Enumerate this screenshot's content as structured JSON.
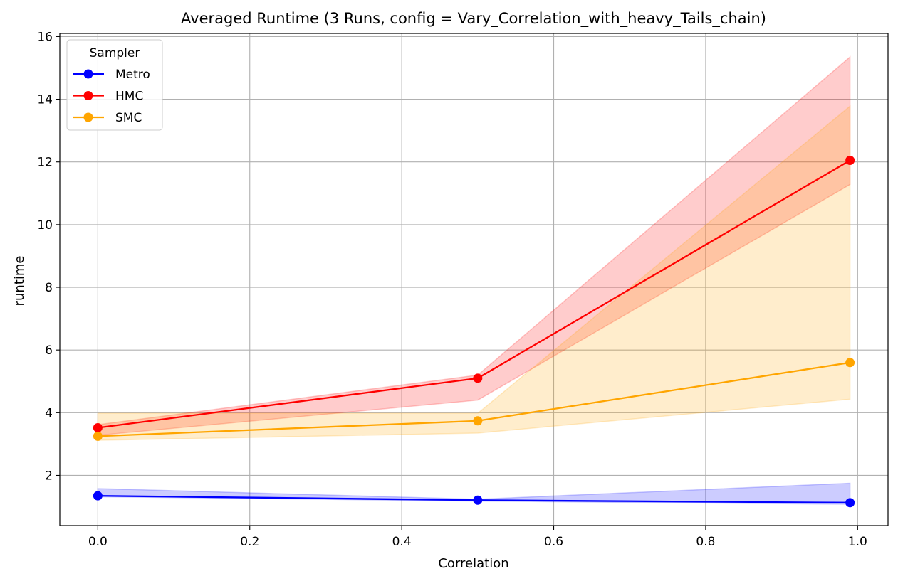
{
  "chart_data": {
    "type": "line",
    "title": "Averaged Runtime (3 Runs, config = Vary_Correlation_with_heavy_Tails_chain)",
    "xlabel": "Correlation",
    "ylabel": "runtime",
    "xlim": [
      -0.05,
      1.04
    ],
    "ylim": [
      0.4,
      16.1
    ],
    "xticks": [
      0.0,
      0.2,
      0.4,
      0.6,
      0.8,
      1.0
    ],
    "xtick_labels": [
      "0.0",
      "0.2",
      "0.4",
      "0.6",
      "0.8",
      "1.0"
    ],
    "yticks": [
      2,
      4,
      6,
      8,
      10,
      12,
      14,
      16
    ],
    "ytick_labels": [
      "2",
      "4",
      "6",
      "8",
      "10",
      "12",
      "14",
      "16"
    ],
    "grid": true,
    "legend": {
      "title": "Sampler",
      "placement": "top-left"
    },
    "x": [
      0.0,
      0.5,
      0.99
    ],
    "series": [
      {
        "name": "Metro",
        "color": "#0000ff",
        "values": [
          1.35,
          1.21,
          1.13
        ],
        "band_lower": [
          1.32,
          1.18,
          1.08
        ],
        "band_upper": [
          1.58,
          1.24,
          1.75
        ]
      },
      {
        "name": "HMC",
        "color": "#ff0000",
        "values": [
          3.52,
          5.1,
          12.05
        ],
        "band_lower": [
          3.28,
          4.4,
          11.28
        ],
        "band_upper": [
          3.62,
          5.2,
          15.35
        ]
      },
      {
        "name": "SMC",
        "color": "#ffa500",
        "values": [
          3.25,
          3.74,
          5.6
        ],
        "band_lower": [
          3.12,
          3.35,
          4.43
        ],
        "band_upper": [
          3.98,
          3.98,
          13.78
        ]
      }
    ]
  }
}
